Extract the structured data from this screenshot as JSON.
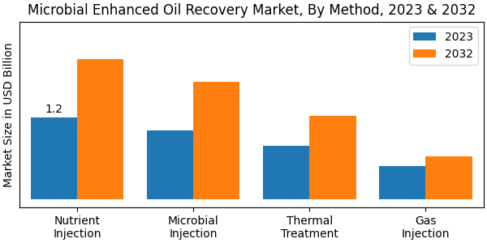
{
  "chart_data": {
    "type": "bar",
    "title": "Microbial Enhanced Oil Recovery Market, By Method, 2023 & 2032",
    "ylabel": "Market Size in USD Billion",
    "categories": [
      "Nutrient\nInjection",
      "Microbial\nInjection",
      "Thermal\nTreatment",
      "Gas\nInjection"
    ],
    "series": [
      {
        "name": "2023",
        "values": [
          1.2,
          1.0,
          0.78,
          0.48
        ]
      },
      {
        "name": "2032",
        "values": [
          2.05,
          1.72,
          1.22,
          0.62
        ]
      }
    ],
    "annotations": [
      {
        "text": "1.2",
        "series": "2023",
        "category": "Nutrient\nInjection"
      }
    ],
    "ylim": [
      -0.12,
      2.6
    ],
    "tick_labels": "x",
    "legend": "upper right",
    "grid": false
  }
}
